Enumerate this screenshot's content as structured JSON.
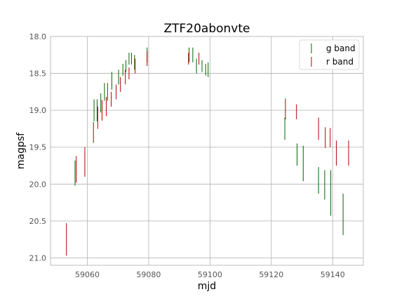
{
  "chart_data": {
    "type": "scatter",
    "title": "ZTF20abonvte",
    "xlabel": "mjd",
    "ylabel": "magpsf",
    "xlim": [
      59048,
      59150
    ],
    "ylim": [
      21.1,
      18.0
    ],
    "y_inverted": true,
    "grid": true,
    "legend_position": "top-right",
    "xticks": [
      59060,
      59080,
      59100,
      59120,
      59140
    ],
    "yticks": [
      18.0,
      18.5,
      19.0,
      19.5,
      20.0,
      20.5,
      21.0
    ],
    "xtick_labels": [
      "59060",
      "59080",
      "59100",
      "59120",
      "59140"
    ],
    "ytick_labels": [
      "18.0",
      "18.5",
      "19.0",
      "19.5",
      "20.0",
      "20.5",
      "21.0"
    ],
    "series": [
      {
        "name": "g band",
        "color": "#006400",
        "points": [
          {
            "x": 59056.0,
            "y": 19.85,
            "err": 0.17
          },
          {
            "x": 59062.2,
            "y": 19.0,
            "err": 0.15
          },
          {
            "x": 59063.2,
            "y": 19.0,
            "err": 0.15
          },
          {
            "x": 59064.4,
            "y": 18.9,
            "err": 0.13
          },
          {
            "x": 59065.6,
            "y": 18.75,
            "err": 0.12
          },
          {
            "x": 59066.6,
            "y": 18.75,
            "err": 0.12
          },
          {
            "x": 59068.0,
            "y": 18.6,
            "err": 0.12
          },
          {
            "x": 59070.2,
            "y": 18.55,
            "err": 0.1
          },
          {
            "x": 59071.6,
            "y": 18.45,
            "err": 0.08
          },
          {
            "x": 59072.6,
            "y": 18.4,
            "err": 0.08
          },
          {
            "x": 59073.6,
            "y": 18.3,
            "err": 0.08
          },
          {
            "x": 59074.4,
            "y": 18.3,
            "err": 0.08
          },
          {
            "x": 59075.4,
            "y": 18.35,
            "err": 0.1
          },
          {
            "x": 59079.5,
            "y": 18.25,
            "err": 0.1
          },
          {
            "x": 59093.2,
            "y": 18.25,
            "err": 0.1
          },
          {
            "x": 59094.4,
            "y": 18.25,
            "err": 0.1
          },
          {
            "x": 59095.6,
            "y": 18.4,
            "err": 0.1
          },
          {
            "x": 59097.4,
            "y": 18.4,
            "err": 0.08
          },
          {
            "x": 59098.6,
            "y": 18.45,
            "err": 0.08
          },
          {
            "x": 59099.4,
            "y": 18.45,
            "err": 0.1
          },
          {
            "x": 59124.4,
            "y": 19.25,
            "err": 0.15
          },
          {
            "x": 59128.4,
            "y": 19.6,
            "err": 0.15
          },
          {
            "x": 59130.4,
            "y": 19.72,
            "err": 0.24
          },
          {
            "x": 59135.4,
            "y": 19.95,
            "err": 0.18
          },
          {
            "x": 59137.4,
            "y": 20.01,
            "err": 0.2
          },
          {
            "x": 59139.4,
            "y": 20.12,
            "err": 0.31
          },
          {
            "x": 59143.4,
            "y": 20.41,
            "err": 0.28
          }
        ]
      },
      {
        "name": "r band",
        "color": "#b40000",
        "points": [
          {
            "x": 59053.2,
            "y": 20.75,
            "err": 0.22
          },
          {
            "x": 59056.4,
            "y": 19.8,
            "err": 0.18
          },
          {
            "x": 59059.2,
            "y": 19.7,
            "err": 0.2
          },
          {
            "x": 59062.0,
            "y": 19.3,
            "err": 0.14
          },
          {
            "x": 59063.4,
            "y": 19.1,
            "err": 0.15
          },
          {
            "x": 59064.8,
            "y": 19.0,
            "err": 0.14
          },
          {
            "x": 59066.2,
            "y": 18.95,
            "err": 0.13
          },
          {
            "x": 59067.8,
            "y": 18.85,
            "err": 0.1
          },
          {
            "x": 59069.4,
            "y": 18.75,
            "err": 0.1
          },
          {
            "x": 59070.8,
            "y": 18.65,
            "err": 0.1
          },
          {
            "x": 59072.4,
            "y": 18.55,
            "err": 0.1
          },
          {
            "x": 59073.6,
            "y": 18.5,
            "err": 0.08
          },
          {
            "x": 59075.6,
            "y": 18.4,
            "err": 0.1
          },
          {
            "x": 59079.5,
            "y": 18.3,
            "err": 0.1
          },
          {
            "x": 59093.0,
            "y": 18.3,
            "err": 0.08
          },
          {
            "x": 59096.4,
            "y": 18.3,
            "err": 0.08
          },
          {
            "x": 59124.6,
            "y": 18.98,
            "err": 0.14
          },
          {
            "x": 59128.2,
            "y": 19.02,
            "err": 0.1
          },
          {
            "x": 59135.4,
            "y": 19.25,
            "err": 0.15
          },
          {
            "x": 59137.6,
            "y": 19.37,
            "err": 0.14
          },
          {
            "x": 59139.2,
            "y": 19.37,
            "err": 0.13
          },
          {
            "x": 59141.2,
            "y": 19.58,
            "err": 0.17
          },
          {
            "x": 59145.2,
            "y": 19.58,
            "err": 0.17
          }
        ]
      }
    ]
  }
}
